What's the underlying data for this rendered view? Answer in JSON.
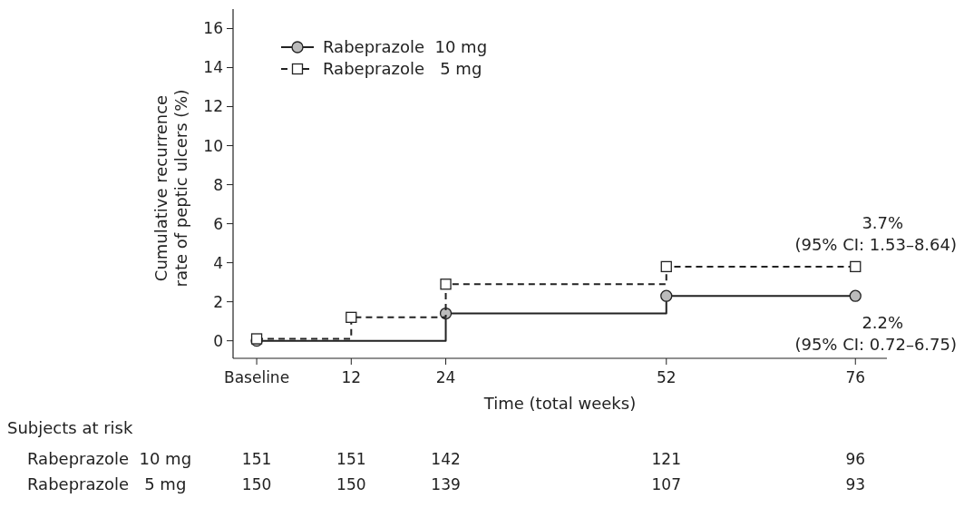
{
  "chart_data": {
    "type": "step",
    "ylabel": "Cumulative recurrence\nrate of peptic ulcers (%)",
    "xlabel": "Time (total weeks)",
    "xlim": [
      -3,
      80
    ],
    "xticks": [
      {
        "value": 0,
        "label": "Baseline"
      },
      12,
      24,
      52,
      76
    ],
    "ylim": [
      -0.9,
      17
    ],
    "yticks": [
      0,
      2,
      4,
      6,
      8,
      10,
      12,
      14,
      16
    ],
    "legend": "top left",
    "grid": false,
    "series": [
      {
        "name": "Rabeprazole  10 mg",
        "color": "#222222",
        "x": [
          0,
          24,
          52,
          76
        ],
        "values": [
          0,
          1.4,
          2.3,
          2.3
        ],
        "marker": "circle",
        "line_style": "solid"
      },
      {
        "name": "Rabeprazole   5 mg",
        "color": "#222222",
        "x": [
          0,
          12,
          24,
          52,
          76
        ],
        "values": [
          0.1,
          1.2,
          2.9,
          3.8,
          3.8
        ],
        "marker": "square",
        "line_style": "dashed"
      }
    ],
    "annotations": [
      {
        "text": "3.7%\n(95% CI: 1.53–8.64)",
        "x": 76,
        "y": 3.8
      },
      {
        "text": "2.2%\n(95% CI: 0.72–6.75)",
        "x": 76,
        "y": 2.3
      },
      "Subjects at risk",
      "Rabeprazole  10 mg",
      "151",
      "151",
      "142",
      "121",
      "96",
      "Rabeprazole   5 mg",
      "150",
      "150",
      "139",
      "107",
      "93"
    ]
  }
}
